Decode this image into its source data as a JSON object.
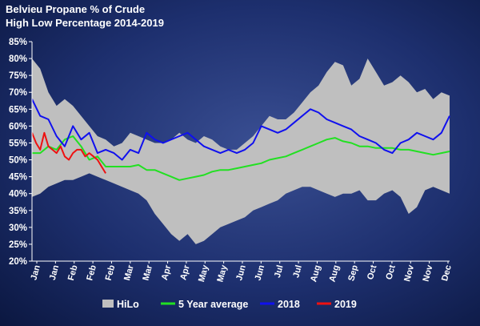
{
  "title_line1": "Belvieu Propane % of Crude",
  "title_line2": "High Low Percentage 2014-2019",
  "chart_data": {
    "type": "line",
    "title": "Belvieu Propane % of Crude\nHigh Low Percentage 2014-2019",
    "xlabel": "",
    "ylabel": "",
    "ylim": [
      0.2,
      0.85
    ],
    "yticks": [
      0.2,
      0.25,
      0.3,
      0.35,
      0.4,
      0.45,
      0.5,
      0.55,
      0.6,
      0.65,
      0.7,
      0.75,
      0.8,
      0.85
    ],
    "ytick_labels": [
      "20%",
      "25%",
      "30%",
      "35%",
      "40%",
      "45%",
      "50%",
      "55%",
      "60%",
      "65%",
      "70%",
      "75%",
      "80%",
      "85%"
    ],
    "x_tick_labels": [
      "Jan",
      "Jan",
      "Feb",
      "Feb",
      "Feb",
      "Mar",
      "Mar",
      "Apr",
      "Apr",
      "May",
      "May",
      "Jun",
      "Jun",
      "Jul",
      "Jul",
      "Aug",
      "Aug",
      "Sep",
      "Oct",
      "Oct",
      "Nov",
      "Nov",
      "Dec"
    ],
    "x_units": "week of year (1-52)",
    "xlim": [
      1,
      52
    ],
    "grid": false,
    "legend_position": "bottom",
    "legend": [
      {
        "name": "HiLo",
        "color": "#bfbfbf",
        "kind": "band"
      },
      {
        "name": "5 Year average",
        "color": "#22e022",
        "kind": "line"
      },
      {
        "name": "2018",
        "color": "#1010ee",
        "kind": "line"
      },
      {
        "name": "2019",
        "color": "#ee1111",
        "kind": "line"
      }
    ],
    "hilo": {
      "name": "HiLo",
      "x": [
        1,
        2,
        3,
        4,
        5,
        6,
        7,
        8,
        9,
        10,
        11,
        12,
        13,
        14,
        15,
        16,
        17,
        18,
        19,
        20,
        21,
        22,
        23,
        24,
        25,
        26,
        27,
        28,
        29,
        30,
        31,
        32,
        33,
        34,
        35,
        36,
        37,
        38,
        39,
        40,
        41,
        42,
        43,
        44,
        45,
        46,
        47,
        48,
        49,
        50,
        51,
        52
      ],
      "high": [
        0.8,
        0.77,
        0.7,
        0.66,
        0.68,
        0.66,
        0.63,
        0.6,
        0.57,
        0.56,
        0.54,
        0.55,
        0.58,
        0.57,
        0.56,
        0.55,
        0.55,
        0.56,
        0.58,
        0.56,
        0.55,
        0.57,
        0.56,
        0.54,
        0.53,
        0.53,
        0.55,
        0.57,
        0.6,
        0.63,
        0.62,
        0.62,
        0.64,
        0.67,
        0.7,
        0.72,
        0.76,
        0.79,
        0.78,
        0.72,
        0.74,
        0.8,
        0.76,
        0.72,
        0.73,
        0.75,
        0.73,
        0.7,
        0.71,
        0.68,
        0.7,
        0.69
      ],
      "low": [
        0.39,
        0.4,
        0.42,
        0.43,
        0.44,
        0.44,
        0.45,
        0.46,
        0.45,
        0.44,
        0.43,
        0.42,
        0.41,
        0.4,
        0.38,
        0.34,
        0.31,
        0.28,
        0.26,
        0.28,
        0.25,
        0.26,
        0.28,
        0.3,
        0.31,
        0.32,
        0.33,
        0.35,
        0.36,
        0.37,
        0.38,
        0.4,
        0.41,
        0.42,
        0.42,
        0.41,
        0.4,
        0.39,
        0.4,
        0.4,
        0.41,
        0.38,
        0.38,
        0.4,
        0.41,
        0.39,
        0.34,
        0.36,
        0.41,
        0.42,
        0.41,
        0.4
      ]
    },
    "series": [
      {
        "name": "5 Year average",
        "color": "#22e022",
        "x": [
          1,
          2,
          3,
          4,
          5,
          6,
          7,
          8,
          9,
          10,
          11,
          12,
          13,
          14,
          15,
          16,
          17,
          18,
          19,
          20,
          21,
          22,
          23,
          24,
          25,
          26,
          27,
          28,
          29,
          30,
          31,
          32,
          33,
          34,
          35,
          36,
          37,
          38,
          39,
          40,
          41,
          42,
          43,
          44,
          45,
          46,
          47,
          48,
          49,
          50,
          51,
          52
        ],
        "values": [
          0.52,
          0.52,
          0.54,
          0.53,
          0.56,
          0.57,
          0.54,
          0.5,
          0.51,
          0.48,
          0.48,
          0.48,
          0.48,
          0.485,
          0.47,
          0.47,
          0.46,
          0.45,
          0.44,
          0.445,
          0.45,
          0.455,
          0.465,
          0.47,
          0.47,
          0.475,
          0.48,
          0.485,
          0.49,
          0.5,
          0.505,
          0.51,
          0.52,
          0.53,
          0.54,
          0.55,
          0.56,
          0.565,
          0.555,
          0.55,
          0.54,
          0.54,
          0.535,
          0.535,
          0.535,
          0.53,
          0.53,
          0.525,
          0.52,
          0.515,
          0.52,
          0.525
        ]
      },
      {
        "name": "2018",
        "color": "#1010ee",
        "x": [
          1,
          2,
          3,
          4,
          5,
          6,
          7,
          8,
          9,
          10,
          11,
          12,
          13,
          14,
          15,
          16,
          17,
          18,
          19,
          20,
          21,
          22,
          23,
          24,
          25,
          26,
          27,
          28,
          29,
          30,
          31,
          32,
          33,
          34,
          35,
          36,
          37,
          38,
          39,
          40,
          41,
          42,
          43,
          44,
          45,
          46,
          47,
          48,
          49,
          50,
          51,
          52
        ],
        "values": [
          0.68,
          0.63,
          0.62,
          0.57,
          0.54,
          0.6,
          0.56,
          0.58,
          0.52,
          0.53,
          0.52,
          0.5,
          0.53,
          0.52,
          0.58,
          0.56,
          0.55,
          0.56,
          0.57,
          0.58,
          0.56,
          0.54,
          0.53,
          0.52,
          0.53,
          0.52,
          0.53,
          0.55,
          0.6,
          0.59,
          0.58,
          0.59,
          0.61,
          0.63,
          0.65,
          0.64,
          0.62,
          0.61,
          0.6,
          0.59,
          0.57,
          0.56,
          0.55,
          0.53,
          0.52,
          0.55,
          0.56,
          0.58,
          0.57,
          0.56,
          0.58,
          0.63
        ]
      },
      {
        "name": "2019",
        "color": "#ee1111",
        "x": [
          1,
          1.5,
          2,
          2.5,
          3,
          3.5,
          4,
          4.5,
          5,
          5.5,
          6,
          6.5,
          7,
          7.5,
          8,
          8.5,
          9,
          9.5,
          10
        ],
        "values": [
          0.58,
          0.55,
          0.53,
          0.58,
          0.54,
          0.53,
          0.52,
          0.54,
          0.51,
          0.5,
          0.52,
          0.53,
          0.53,
          0.51,
          0.52,
          0.51,
          0.5,
          0.48,
          0.46
        ]
      }
    ]
  }
}
